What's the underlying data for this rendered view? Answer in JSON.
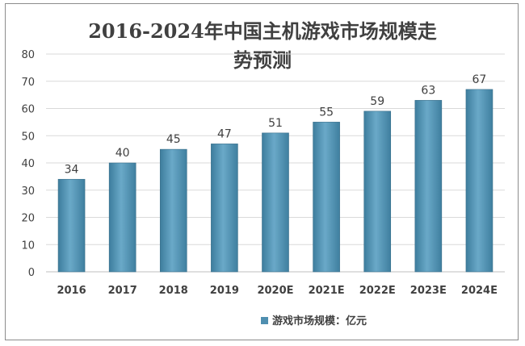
{
  "chart_data": {
    "type": "bar",
    "title_lines": [
      "2016-2024年中国主机游戏市场规模走",
      "势预测"
    ],
    "categories": [
      "2016",
      "2017",
      "2018",
      "2019",
      "2020E",
      "2021E",
      "2022E",
      "2023E",
      "2024E"
    ],
    "series": [
      {
        "name": "游戏市场规模：亿元",
        "values": [
          34,
          40,
          45,
          47,
          51,
          55,
          59,
          63,
          67
        ],
        "color": "#4f8fb0"
      }
    ],
    "y_ticks": [
      "0",
      "10",
      "20",
      "30",
      "40",
      "50",
      "60",
      "70",
      "80"
    ],
    "ylim": [
      0,
      80
    ],
    "grid": true,
    "legend_position": "bottom"
  }
}
